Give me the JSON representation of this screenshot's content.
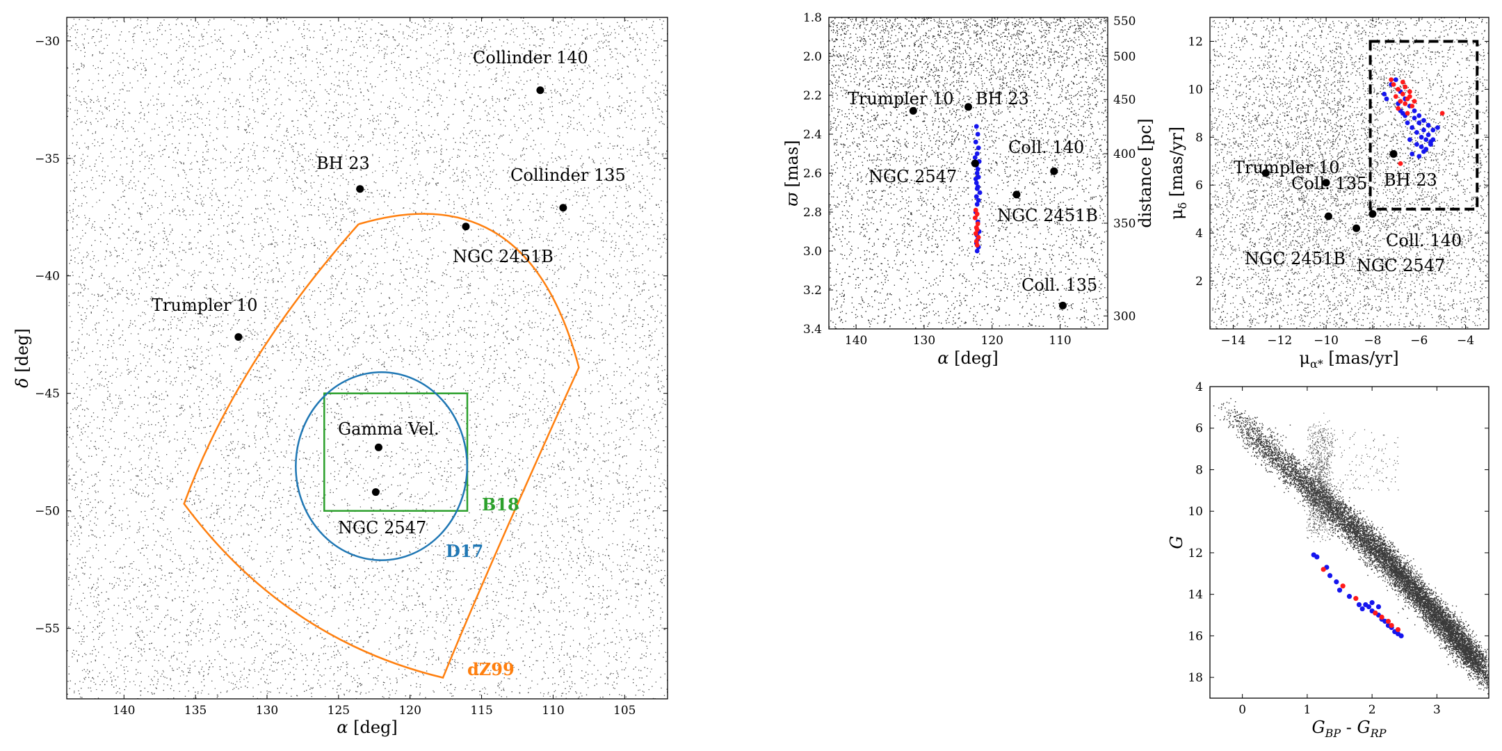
{
  "chart_data": [
    {
      "id": "sky",
      "type": "scatter",
      "xlabel_sym": "α",
      "xlabel_unit": "[deg]",
      "ylabel_sym": "δ",
      "ylabel_unit": "[deg]",
      "xlim": [
        144,
        102
      ],
      "ylim": [
        -58,
        -29
      ],
      "xticks": [
        140,
        135,
        130,
        125,
        120,
        115,
        110,
        105
      ],
      "yticks": [
        -30,
        -35,
        -40,
        -45,
        -50,
        -55
      ],
      "clusters": [
        {
          "name": "Collinder 140",
          "x": 110.9,
          "y": -32.1
        },
        {
          "name": "BH 23",
          "x": 123.5,
          "y": -36.3
        },
        {
          "name": "Collinder 135",
          "x": 109.3,
          "y": -37.1
        },
        {
          "name": "NGC 2451B",
          "x": 116.1,
          "y": -37.9
        },
        {
          "name": "Trumpler 10",
          "x": 132.0,
          "y": -42.6
        },
        {
          "name": "Gamma Vel.",
          "x": 122.2,
          "y": -47.3
        },
        {
          "name": "NGC 2547",
          "x": 122.4,
          "y": -49.2
        }
      ],
      "regions": [
        {
          "name": "B18",
          "color": "#2ca02c",
          "shape": "rectangle",
          "x": [
            116,
            126
          ],
          "y": [
            -50,
            -45
          ]
        },
        {
          "name": "D17",
          "color": "#1f77b4",
          "shape": "circle",
          "center": [
            122,
            -48.1
          ],
          "radius_deg": 4
        },
        {
          "name": "dZ99",
          "color": "#ff7f0e",
          "shape": "polygon",
          "corners": [
            [
              123.6,
              -37.8
            ],
            [
              108.2,
              -43.9
            ],
            [
              117.7,
              -57.1
            ],
            [
              135.8,
              -49.7
            ]
          ]
        }
      ]
    },
    {
      "id": "parallax",
      "type": "scatter",
      "xlabel_sym": "α",
      "xlabel_unit": "[deg]",
      "ylabel_sym": "ϖ",
      "ylabel_unit": "[mas]",
      "y2label": "distance [pc]",
      "xlim": [
        144,
        103
      ],
      "ylim": [
        3.4,
        1.8
      ],
      "xticks": [
        140,
        130,
        120,
        110
      ],
      "yticks": [
        "1.8",
        "2.0",
        "2.2",
        "2.4",
        "2.6",
        "2.8",
        "3.0",
        "3.2",
        "3.4"
      ],
      "y2ticks": [
        550,
        500,
        450,
        400,
        350,
        300
      ],
      "clusters": [
        {
          "name": "Trumpler 10",
          "x": 131.6,
          "y": 2.28
        },
        {
          "name": "BH 23",
          "x": 123.5,
          "y": 2.26
        },
        {
          "name": "NGC 2547",
          "x": 122.5,
          "y": 2.55
        },
        {
          "name": "Coll. 140",
          "x": 110.9,
          "y": 2.59
        },
        {
          "name": "NGC 2451B",
          "x": 116.4,
          "y": 2.71
        },
        {
          "name": "Coll. 135",
          "x": 109.6,
          "y": 3.28
        }
      ],
      "members": [
        {
          "group": "blue",
          "color": "#1515ee",
          "x": [
            122.3,
            122.1,
            122.4,
            122.0,
            122.2,
            122.5,
            121.9,
            122.3,
            122.1,
            122.2,
            122.0,
            122.4,
            122.3,
            122.1,
            122.2,
            121.8,
            122.3,
            122.0,
            122.2,
            122.4,
            122.1,
            122.3,
            121.9,
            122.2,
            122.1,
            122.3,
            122.0,
            122.2
          ],
          "y": [
            2.36,
            2.4,
            2.44,
            2.47,
            2.5,
            2.52,
            2.54,
            2.56,
            2.58,
            2.6,
            2.62,
            2.63,
            2.65,
            2.67,
            2.68,
            2.7,
            2.72,
            2.74,
            2.76,
            2.8,
            2.85,
            2.88,
            2.9,
            2.92,
            2.94,
            2.96,
            2.98,
            3.0
          ]
        },
        {
          "group": "red",
          "color": "#ff1a1a",
          "x": [
            122.4,
            122.2,
            122.5,
            122.1,
            122.3,
            122.2,
            122.4,
            122.0,
            122.3,
            122.2
          ],
          "y": [
            2.79,
            2.81,
            2.83,
            2.86,
            2.88,
            2.89,
            2.91,
            2.93,
            2.95,
            2.97
          ]
        }
      ]
    },
    {
      "id": "proper-motion",
      "type": "scatter",
      "xlabel": "μα* [mas/yr]",
      "ylabel": "μδ [mas/yr]",
      "xlim": [
        -15,
        -3
      ],
      "ylim": [
        0,
        13
      ],
      "xticks": [
        -14,
        -12,
        -10,
        -8,
        -6,
        -4
      ],
      "yticks": [
        2,
        4,
        6,
        8,
        10,
        12
      ],
      "selection_box": {
        "x": [
          -8.1,
          -3.5
        ],
        "y": [
          5,
          12
        ]
      },
      "clusters": [
        {
          "name": "Trumpler 10",
          "x": -12.6,
          "y": 6.5
        },
        {
          "name": "Coll. 135",
          "x": -10.0,
          "y": 6.1
        },
        {
          "name": "BH 23",
          "x": -7.1,
          "y": 7.3
        },
        {
          "name": "NGC 2451B",
          "x": -9.9,
          "y": 4.7
        },
        {
          "name": "NGC 2547",
          "x": -8.7,
          "y": 4.2
        },
        {
          "name": "Coll. 140",
          "x": -8.0,
          "y": 4.8
        }
      ],
      "members": [
        {
          "group": "blue",
          "color": "#1515ee",
          "x": [
            -7.5,
            -7.0,
            -6.8,
            -6.6,
            -6.4,
            -6.2,
            -6.0,
            -5.8,
            -5.6,
            -5.4,
            -5.2,
            -6.5,
            -6.3,
            -6.1,
            -5.9,
            -5.7,
            -5.5,
            -6.7,
            -6.9,
            -6.2,
            -6.0,
            -5.8,
            -5.6,
            -5.4,
            -6.4,
            -6.1,
            -5.9,
            -5.7,
            -6.3,
            -6.0,
            -5.8,
            -5.5,
            -6.6,
            -6.8,
            -7.2,
            -7.4
          ],
          "y": [
            9.8,
            10.4,
            9.9,
            9.6,
            9.3,
            9.1,
            8.9,
            8.7,
            8.5,
            8.3,
            8.4,
            8.6,
            8.4,
            8.2,
            8.0,
            7.9,
            7.8,
            9.0,
            9.4,
            8.8,
            8.6,
            8.3,
            8.1,
            7.9,
            7.9,
            7.7,
            7.6,
            7.5,
            7.3,
            7.2,
            7.4,
            7.7,
            8.9,
            9.1,
            10.2,
            9.6
          ]
        },
        {
          "group": "red",
          "color": "#ff1a1a",
          "x": [
            -7.1,
            -6.9,
            -6.7,
            -6.5,
            -6.8,
            -6.6,
            -6.4,
            -7.0,
            -6.6,
            -6.3,
            -6.9,
            -7.2,
            -6.5,
            -6.2,
            -5.0,
            -6.7,
            -6.4,
            -6.8
          ],
          "y": [
            10.2,
            10.0,
            9.8,
            9.6,
            9.5,
            9.4,
            9.9,
            9.7,
            10.1,
            9.3,
            9.2,
            10.4,
            9.0,
            9.5,
            9.0,
            10.3,
            9.7,
            6.9
          ]
        }
      ]
    },
    {
      "id": "cmd",
      "type": "scatter",
      "xlabel": "G_BP - G_RP",
      "ylabel": "G",
      "xlim": [
        -0.5,
        3.8
      ],
      "ylim": [
        19,
        4
      ],
      "xticks": [
        0,
        1,
        2,
        3
      ],
      "yticks": [
        4,
        6,
        8,
        10,
        12,
        14,
        16,
        18
      ],
      "members": [
        {
          "group": "blue",
          "color": "#1515ee",
          "x": [
            1.1,
            1.15,
            1.3,
            1.35,
            1.45,
            1.5,
            1.65,
            1.8,
            1.85,
            1.95,
            2.0,
            2.05,
            2.1,
            2.15,
            2.2,
            2.25,
            2.3,
            2.35,
            2.4,
            2.45,
            1.9,
            2.0,
            2.1
          ],
          "y": [
            12.1,
            12.2,
            12.7,
            13.1,
            13.4,
            13.8,
            14.1,
            14.5,
            14.7,
            14.6,
            14.4,
            14.9,
            15.0,
            15.2,
            15.3,
            15.5,
            15.6,
            15.8,
            15.9,
            16.0,
            14.5,
            14.8,
            14.6
          ]
        },
        {
          "group": "red",
          "color": "#ff1a1a",
          "x": [
            1.25,
            1.55,
            1.75,
            2.05,
            2.15,
            2.25,
            2.3,
            2.4
          ],
          "y": [
            12.8,
            13.6,
            14.2,
            14.9,
            15.1,
            15.3,
            15.5,
            15.7
          ]
        }
      ]
    }
  ]
}
